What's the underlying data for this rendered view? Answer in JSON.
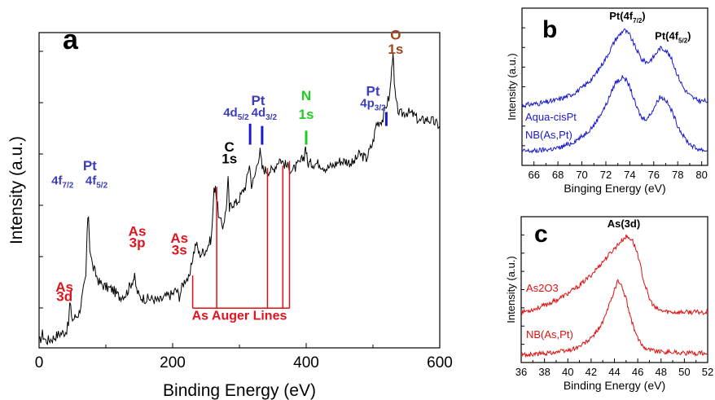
{
  "colors": {
    "black": "#000000",
    "pt_blue": "#3d3dbf",
    "as_red": "#e0141e",
    "n_green": "#22cc22",
    "o_brown": "#a0441a",
    "line_blue": "#1a1acc",
    "line_red": "#e01010"
  },
  "chart_data": [
    {
      "panel": "a",
      "type": "line",
      "xlabel": "Binding Energy (eV)",
      "ylabel": "Intensity (a.u.)",
      "xlim": [
        0,
        600
      ],
      "xticks": [
        "0",
        "200",
        "400",
        "600"
      ],
      "y_tick_labels": false,
      "series": [
        {
          "x": [
            0,
            5,
            10,
            20,
            30,
            40,
            44,
            46,
            50,
            60,
            70,
            72,
            74,
            76,
            80,
            90,
            100,
            110,
            120,
            130,
            140,
            143,
            146,
            150,
            160,
            170,
            180,
            190,
            200,
            205,
            210,
            215,
            220,
            225,
            230,
            235,
            240,
            250,
            258,
            262,
            264,
            266,
            270,
            275,
            280,
            283,
            285,
            288,
            295,
            300,
            310,
            315,
            318,
            322,
            328,
            331,
            334,
            340,
            350,
            360,
            370,
            380,
            390,
            397,
            399,
            402,
            410,
            420,
            430,
            440,
            450,
            460,
            470,
            480,
            490,
            500,
            505,
            510,
            515,
            520,
            525,
            528,
            530,
            532,
            535,
            540,
            550,
            560,
            570,
            580,
            590,
            600
          ],
          "y": [
            2,
            6,
            3,
            4,
            6,
            7,
            10,
            19,
            12,
            15,
            30,
            50,
            57,
            43,
            35,
            28,
            26,
            25,
            22,
            23,
            29,
            30,
            25,
            22,
            21,
            21,
            20,
            22,
            23,
            25,
            22,
            27,
            30,
            29,
            39,
            45,
            40,
            42,
            47,
            67,
            70,
            63,
            55,
            52,
            59,
            72,
            59,
            62,
            62,
            64,
            70,
            79,
            70,
            72,
            81,
            84,
            77,
            76,
            76,
            81,
            78,
            76,
            79,
            82,
            87,
            79,
            79,
            79,
            77,
            78,
            80,
            80,
            79,
            83,
            81,
            88,
            96,
            97,
            98,
            104,
            108,
            119,
            128,
            112,
            104,
            100,
            101,
            100,
            97,
            98,
            97,
            95
          ]
        }
      ],
      "annotations": [
        {
          "text": "As",
          "x": 38,
          "y": 24,
          "color": "as_red"
        },
        {
          "text": "3d",
          "x": 38,
          "y": 20,
          "color": "as_red"
        },
        {
          "text": "Pt",
          "x": 76,
          "y": 76,
          "color": "pt_blue"
        },
        {
          "text": "4f",
          "sub": "7/2",
          "x": 35,
          "y": 70,
          "color": "pt_blue"
        },
        {
          "text": "4f",
          "sub": "5/2",
          "x": 86,
          "y": 70,
          "color": "pt_blue"
        },
        {
          "text": "As",
          "x": 147,
          "y": 48,
          "color": "as_red"
        },
        {
          "text": "3p",
          "x": 147,
          "y": 43,
          "color": "as_red"
        },
        {
          "text": "As",
          "x": 210,
          "y": 45,
          "color": "as_red"
        },
        {
          "text": "3s",
          "x": 210,
          "y": 40,
          "color": "as_red"
        },
        {
          "text": "C",
          "x": 285,
          "y": 84,
          "color": "black"
        },
        {
          "text": "1s",
          "x": 285,
          "y": 79,
          "color": "black"
        },
        {
          "text": "Pt",
          "x": 328,
          "y": 104,
          "color": "pt_blue"
        },
        {
          "text": "4d",
          "sub": "5/2",
          "x": 295,
          "y": 99,
          "color": "pt_blue"
        },
        {
          "text": "4d",
          "sub": "3/2",
          "x": 337,
          "y": 99,
          "color": "pt_blue"
        },
        {
          "text": "N",
          "x": 400,
          "y": 106,
          "color": "n_green"
        },
        {
          "text": "1s",
          "x": 400,
          "y": 98,
          "color": "n_green"
        },
        {
          "text": "Pt",
          "x": 500,
          "y": 108,
          "color": "pt_blue"
        },
        {
          "text": "4p",
          "sub": "3/2",
          "x": 500,
          "y": 103,
          "color": "pt_blue"
        },
        {
          "text": "O",
          "x": 534,
          "y": 132,
          "color": "o_brown"
        },
        {
          "text": "1s",
          "x": 534,
          "y": 126,
          "color": "o_brown"
        },
        {
          "text": "As Auger Lines",
          "x": 300,
          "y": 12,
          "color": "as_red"
        }
      ],
      "peak_markers": [
        {
          "x": 316,
          "y1": 87,
          "y2": 96,
          "color": "line_blue"
        },
        {
          "x": 334,
          "y1": 87,
          "y2": 95,
          "color": "line_blue"
        },
        {
          "x": 400,
          "y1": 87,
          "y2": 93,
          "color": "n_green"
        },
        {
          "x": 520,
          "y1": 95,
          "y2": 101,
          "color": "line_blue"
        }
      ],
      "auger_lines": [
        {
          "x": 230,
          "top": 31
        },
        {
          "x": 266,
          "top": 69
        },
        {
          "x": 342,
          "top": 77
        },
        {
          "x": 365,
          "top": 78
        },
        {
          "x": 375,
          "top": 80
        }
      ],
      "auger_baseline_y": 17,
      "label": "a"
    },
    {
      "panel": "b",
      "type": "line",
      "xlabel": "Binging Energy (eV)",
      "ylabel": "Intensity (a.u.)",
      "xlim": [
        65,
        80.5
      ],
      "xticks": [
        "66",
        "68",
        "70",
        "72",
        "74",
        "76",
        "78",
        "80"
      ],
      "y_tick_labels": false,
      "series": [
        {
          "name": "Aqua-cisPt",
          "x": [
            65,
            66,
            67,
            68,
            69,
            70,
            71,
            72,
            72.8,
            73.5,
            74,
            74.5,
            75,
            75.5,
            76,
            76.5,
            77,
            77.5,
            78,
            78.5,
            79,
            79.5,
            80,
            80.5
          ],
          "y": [
            0.42,
            0.43,
            0.44,
            0.46,
            0.49,
            0.54,
            0.62,
            0.75,
            0.88,
            0.95,
            0.91,
            0.82,
            0.74,
            0.72,
            0.76,
            0.82,
            0.81,
            0.74,
            0.63,
            0.54,
            0.49,
            0.46,
            0.45,
            0.45
          ]
        },
        {
          "name": "NB(As,Pt)",
          "x": [
            65,
            66,
            67,
            68,
            69,
            70,
            71,
            72,
            72.8,
            73.5,
            74,
            74.5,
            75,
            75.5,
            76,
            76.5,
            77,
            77.5,
            78,
            78.5,
            79,
            79.5,
            80,
            80.5
          ],
          "y": [
            0.1,
            0.1,
            0.11,
            0.12,
            0.15,
            0.2,
            0.28,
            0.42,
            0.58,
            0.62,
            0.55,
            0.42,
            0.33,
            0.33,
            0.4,
            0.48,
            0.46,
            0.38,
            0.28,
            0.2,
            0.15,
            0.12,
            0.11,
            0.1
          ]
        }
      ],
      "peak_labels": [
        {
          "text": "Pt(4f",
          "sub": "7/2",
          "close": ")",
          "x": 73.8,
          "y": 1.02
        },
        {
          "text": "Pt(4f",
          "sub": "5/2",
          "close": ")",
          "x": 77.6,
          "y": 0.88
        }
      ],
      "label": "b"
    },
    {
      "panel": "c",
      "type": "line",
      "xlabel": "Binding Energy (eV)",
      "ylabel": "Intensity (a.u.)",
      "xlim": [
        36,
        52
      ],
      "xticks": [
        "36",
        "38",
        "40",
        "42",
        "44",
        "46",
        "48",
        "50",
        "52"
      ],
      "y_tick_labels": false,
      "series": [
        {
          "name": "As2O3",
          "x": [
            36,
            37,
            38,
            39,
            40,
            41,
            42,
            43,
            44,
            44.5,
            45,
            45.5,
            46,
            46.5,
            47,
            47.5,
            48,
            49,
            50,
            51,
            52
          ],
          "y": [
            0.38,
            0.4,
            0.43,
            0.47,
            0.52,
            0.58,
            0.66,
            0.76,
            0.86,
            0.91,
            0.95,
            0.93,
            0.82,
            0.62,
            0.48,
            0.41,
            0.39,
            0.38,
            0.38,
            0.38,
            0.38
          ]
        },
        {
          "name": "NB(As,Pt)",
          "x": [
            36,
            37,
            38,
            39,
            40,
            41,
            42,
            43,
            43.5,
            44,
            44.3,
            44.7,
            45,
            45.5,
            46,
            46.5,
            47,
            48,
            49,
            50,
            51,
            52
          ],
          "y": [
            0.06,
            0.06,
            0.07,
            0.08,
            0.09,
            0.12,
            0.18,
            0.3,
            0.42,
            0.55,
            0.62,
            0.56,
            0.48,
            0.3,
            0.18,
            0.12,
            0.1,
            0.08,
            0.08,
            0.07,
            0.07,
            0.07
          ]
        }
      ],
      "peak_labels": [
        {
          "text": "As(3d)",
          "x": 44.8,
          "y": 1.02
        }
      ],
      "label": "c"
    }
  ]
}
